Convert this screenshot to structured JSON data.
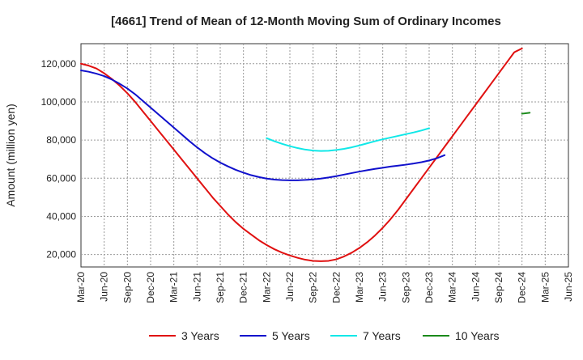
{
  "chart_data": {
    "type": "line",
    "title": "[4661]  Trend of Mean of 12-Month Moving Sum of Ordinary Incomes",
    "xlabel": "",
    "ylabel": "Amount (million yen)",
    "ylim": [
      13500,
      130500
    ],
    "yticks": [
      20000,
      40000,
      60000,
      80000,
      100000,
      120000
    ],
    "ytick_labels": [
      "20,000",
      "40,000",
      "60,000",
      "80,000",
      "100,000",
      "120,000"
    ],
    "x_start": "2020-03",
    "x_end": "2025-06",
    "xtick_labels": [
      "Mar-20",
      "Jun-20",
      "Sep-20",
      "Dec-20",
      "Mar-21",
      "Jun-21",
      "Sep-21",
      "Dec-21",
      "Mar-22",
      "Jun-22",
      "Sep-22",
      "Dec-22",
      "Mar-23",
      "Jun-23",
      "Sep-23",
      "Dec-23",
      "Mar-24",
      "Jun-24",
      "Sep-24",
      "Dec-24",
      "Mar-25",
      "Jun-25"
    ],
    "grid": true,
    "legend_position": "bottom",
    "series": [
      {
        "name": "3 Years",
        "color": "#e01010",
        "start": "2020-03",
        "values": [
          120000,
          119000,
          117500,
          115000,
          112000,
          108500,
          104500,
          100000,
          95000,
          90000,
          85000,
          80000,
          75000,
          70000,
          65000,
          60000,
          55000,
          50000,
          45500,
          41000,
          37000,
          33500,
          30500,
          27500,
          25000,
          22800,
          21000,
          19500,
          18300,
          17300,
          16700,
          16500,
          16700,
          17500,
          19000,
          21000,
          23500,
          26500,
          30000,
          34000,
          38500,
          43500,
          49000,
          54500,
          60000,
          65500,
          71000,
          76500,
          82000,
          87500,
          93000,
          98500,
          104000,
          109500,
          115000,
          120500,
          126000,
          128000
        ]
      },
      {
        "name": "5 Years",
        "color": "#1010cc",
        "start": "2020-03",
        "values": [
          116500,
          115800,
          114800,
          113500,
          111700,
          109500,
          107000,
          104000,
          100500,
          97000,
          93500,
          90000,
          86500,
          83000,
          79500,
          76200,
          73200,
          70500,
          68200,
          66200,
          64400,
          62900,
          61600,
          60600,
          59800,
          59300,
          59000,
          58900,
          58900,
          59100,
          59400,
          59800,
          60400,
          61100,
          61900,
          62700,
          63500,
          64200,
          64900,
          65500,
          66100,
          66600,
          67100,
          67700,
          68400,
          69300,
          70500,
          72100
        ]
      },
      {
        "name": "7 Years",
        "color": "#10e8e8",
        "start": "2022-03",
        "values": [
          81000,
          79400,
          78000,
          76800,
          75800,
          75000,
          74500,
          74300,
          74400,
          74800,
          75400,
          76200,
          77200,
          78300,
          79400,
          80400,
          81300,
          82200,
          83100,
          84000,
          85000,
          86200
        ]
      },
      {
        "name": "10 Years",
        "color": "#1a8a1a",
        "start": "2024-12",
        "values": [
          93800,
          94300
        ]
      }
    ]
  }
}
